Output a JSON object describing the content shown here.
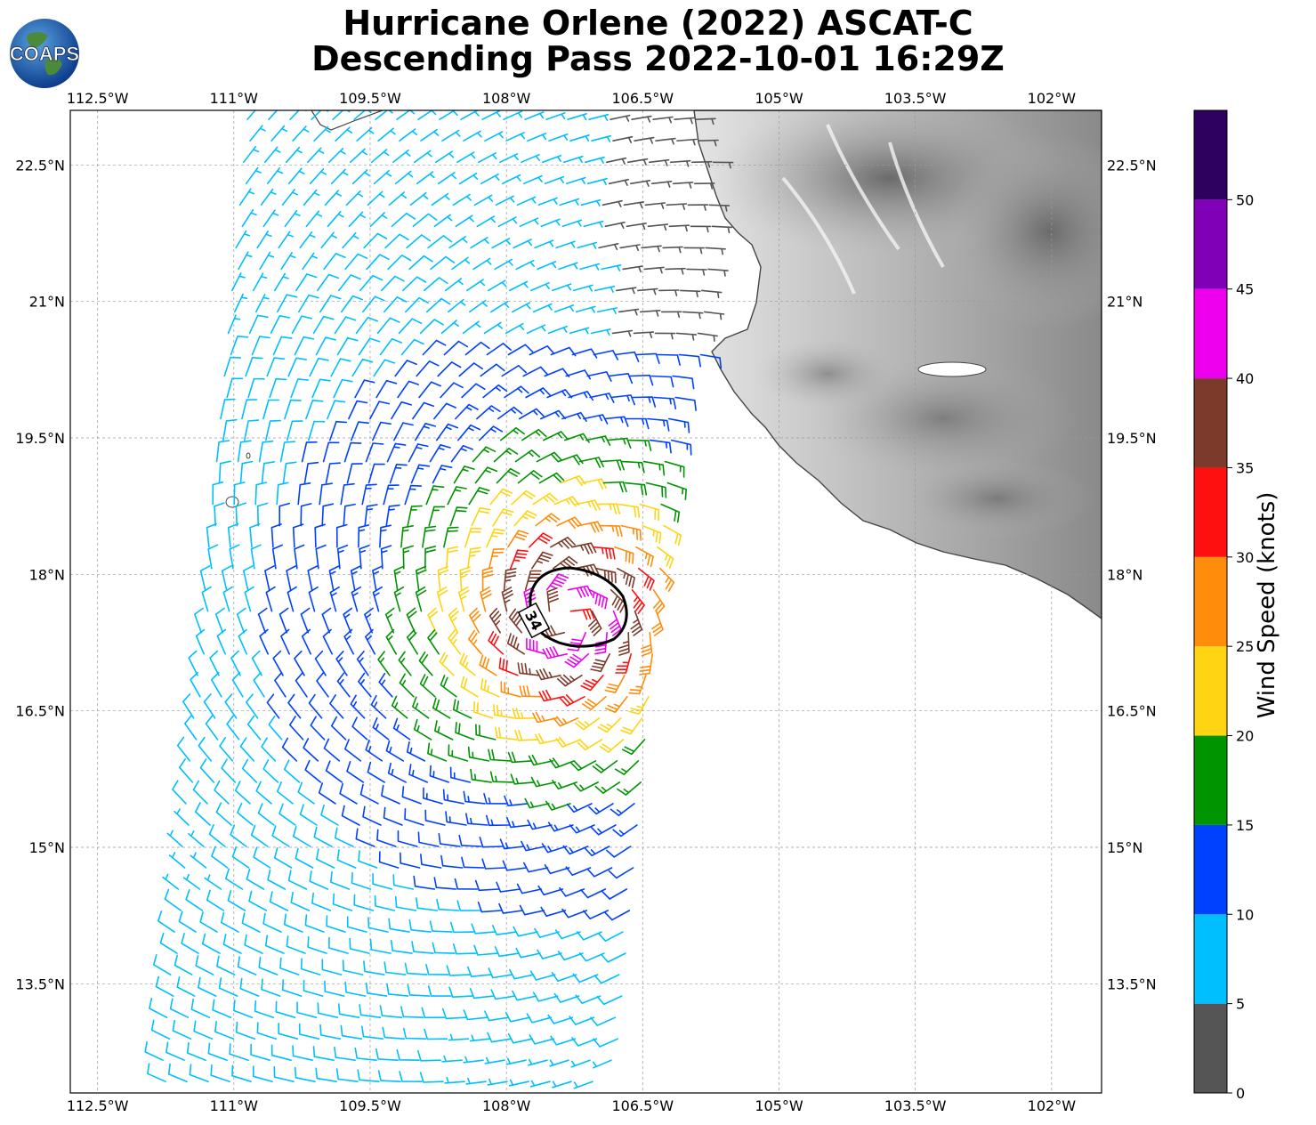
{
  "title": {
    "line1": "Hurricane Orlene (2022) ASCAT-C",
    "line2": "Descending Pass 2022-10-01 16:29Z"
  },
  "logo": {
    "text": "COAPS",
    "icon": "globe-icon"
  },
  "axes": {
    "lon_ticks": [
      "112.5°W",
      "111°W",
      "109.5°W",
      "108°W",
      "106.5°W",
      "105°W",
      "103.5°W",
      "102°W"
    ],
    "lat_ticks": [
      "22.5°N",
      "21°N",
      "19.5°N",
      "18°N",
      "16.5°N",
      "15°N",
      "13.5°N"
    ],
    "lon_range": [
      -112.8,
      -101.45
    ],
    "lat_range": [
      12.3,
      23.1
    ]
  },
  "storm": {
    "center_lon": -107.35,
    "center_lat": 17.55,
    "contour_label": "34"
  },
  "colorbar": {
    "label": "Wind Speed (knots)",
    "tick_labels": [
      "0",
      "5",
      "10",
      "15",
      "20",
      "25",
      "30",
      "35",
      "40",
      "45",
      "50"
    ],
    "bins": [
      {
        "min": 0,
        "max": 5,
        "color": "#555555"
      },
      {
        "min": 5,
        "max": 10,
        "color": "#00bfff"
      },
      {
        "min": 10,
        "max": 15,
        "color": "#0040ff"
      },
      {
        "min": 15,
        "max": 20,
        "color": "#009400"
      },
      {
        "min": 20,
        "max": 25,
        "color": "#ffd412"
      },
      {
        "min": 25,
        "max": 30,
        "color": "#ff8c0a"
      },
      {
        "min": 30,
        "max": 35,
        "color": "#ff1010"
      },
      {
        "min": 35,
        "max": 40,
        "color": "#7c3a2a"
      },
      {
        "min": 40,
        "max": 45,
        "color": "#ee00ee"
      },
      {
        "min": 45,
        "max": 50,
        "color": "#8000b8"
      },
      {
        "min": 50,
        "max": 55,
        "color": "#2e0060"
      }
    ]
  }
}
